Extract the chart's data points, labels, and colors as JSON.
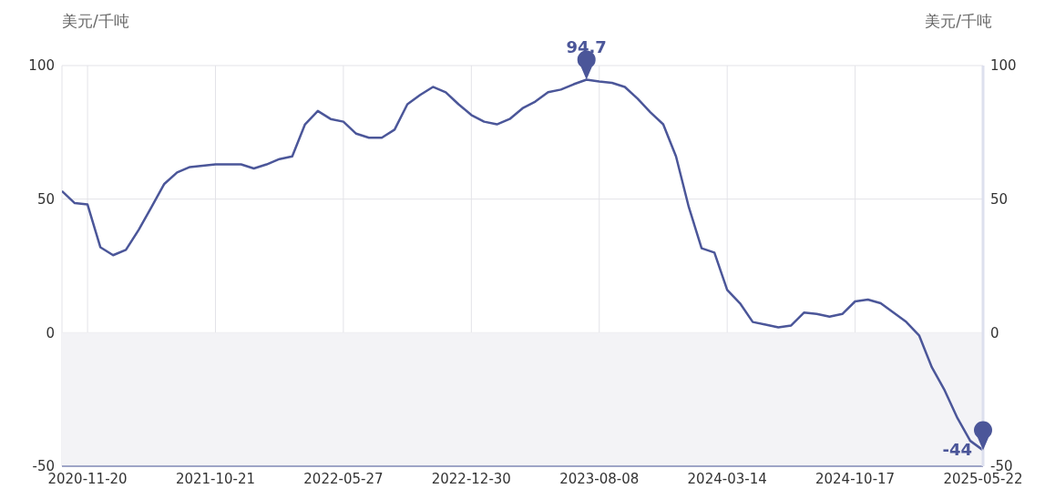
{
  "chart_data": {
    "type": "line",
    "ylabel": "美元/千吨",
    "y2label": "美元/千吨",
    "categories": [
      null,
      null,
      "2020-11-20",
      null,
      null,
      null,
      null,
      null,
      null,
      null,
      null,
      null,
      "2021-10-21",
      null,
      null,
      null,
      null,
      null,
      null,
      null,
      null,
      null,
      "2022-05-27",
      null,
      null,
      null,
      null,
      null,
      null,
      null,
      null,
      null,
      "2022-12-30",
      null,
      null,
      null,
      null,
      null,
      null,
      null,
      null,
      null,
      "2023-08-08",
      null,
      null,
      null,
      null,
      null,
      null,
      null,
      null,
      null,
      "2024-03-14",
      null,
      null,
      null,
      null,
      null,
      null,
      null,
      null,
      null,
      "2024-10-17",
      null,
      null,
      null,
      null,
      null,
      null,
      null,
      null,
      null,
      "2025-05-22"
    ],
    "series": [
      {
        "color": "#4b5699",
        "values": [
          53,
          48.5,
          48,
          32,
          29,
          31,
          38.5,
          47,
          55.7,
          60,
          62,
          62.5,
          63,
          63,
          63,
          61.5,
          63,
          65,
          66,
          78,
          83,
          80,
          79,
          74.5,
          73,
          73,
          76,
          85.5,
          89,
          92,
          90,
          85.5,
          81.5,
          79,
          78,
          80,
          84,
          86.5,
          90,
          91,
          93,
          94.7,
          94,
          93.5,
          92,
          87.6,
          82.5,
          78,
          66,
          47,
          31.6,
          30,
          16,
          11,
          4,
          3,
          2,
          2.7,
          7.5,
          7,
          6,
          7,
          11.7,
          12.4,
          11,
          7.5,
          4,
          -1,
          -13,
          -21.6,
          -32,
          -40.5,
          -44
        ],
        "value_labels": [
          null,
          null,
          null,
          null,
          null,
          null,
          null,
          null,
          null,
          null,
          null,
          null,
          null,
          null,
          null,
          null,
          null,
          null,
          null,
          null,
          null,
          null,
          null,
          null,
          null,
          null,
          null,
          null,
          null,
          null,
          null,
          null,
          null,
          null,
          null,
          null,
          null,
          null,
          null,
          null,
          null,
          "94.7",
          null,
          null,
          null,
          null,
          null,
          null,
          null,
          null,
          null,
          null,
          null,
          null,
          null,
          null,
          null,
          null,
          null,
          null,
          null,
          null,
          null,
          null,
          null,
          null,
          null,
          null,
          null,
          null,
          null,
          null,
          "-44"
        ]
      }
    ],
    "ylim": [
      -50,
      100
    ],
    "yticks": [
      -50,
      0,
      50,
      100
    ],
    "y2lim": [
      -50,
      100
    ],
    "y2ticks": [
      -50,
      0,
      50,
      100
    ],
    "bands": [
      {
        "axis": "y",
        "from": -50,
        "to": 0,
        "color": "#f3f3f6"
      }
    ],
    "grid": true,
    "marker": "none",
    "line_style": "solid"
  }
}
